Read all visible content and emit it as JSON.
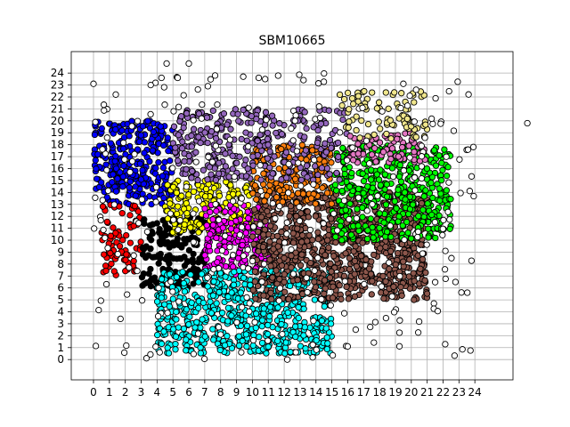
{
  "chart_data": {
    "type": "scatter",
    "title": "SBM10665",
    "xlabel": "",
    "ylabel": "",
    "xlim": [
      -1.4,
      26.4
    ],
    "ylim": [
      -1.7,
      25.8
    ],
    "grid": true,
    "x_ticks": [
      0,
      1,
      2,
      3,
      4,
      5,
      6,
      7,
      8,
      9,
      10,
      11,
      12,
      13,
      14,
      15,
      16,
      17,
      18,
      19,
      20,
      21,
      22,
      23,
      24
    ],
    "y_ticks": [
      0,
      1,
      2,
      3,
      4,
      5,
      6,
      7,
      8,
      9,
      10,
      11,
      12,
      13,
      14,
      15,
      16,
      17,
      18,
      19,
      20,
      21,
      22,
      23,
      24
    ],
    "clusters": [
      {
        "color": "#0000ff",
        "x_range": [
          0,
          5
        ],
        "y_range": [
          13,
          20
        ],
        "density": 16
      },
      {
        "color": "#ff0000",
        "x_range": [
          0.5,
          3
        ],
        "y_range": [
          7,
          13
        ],
        "density": 10
      },
      {
        "color": "#000000",
        "x_range": [
          3,
          7
        ],
        "y_range": [
          6,
          12
        ],
        "density": 14
      },
      {
        "color": "#ffff00",
        "x_range": [
          4.5,
          10
        ],
        "y_range": [
          10.5,
          15
        ],
        "density": 14
      },
      {
        "color": "#ff00ff",
        "x_range": [
          7,
          11
        ],
        "y_range": [
          7,
          13
        ],
        "density": 14
      },
      {
        "color": "#00ffff",
        "x_range": [
          4,
          15
        ],
        "y_range": [
          0.5,
          7.5
        ],
        "density": 16
      },
      {
        "color": "#8c564b",
        "x_range": [
          10,
          21
        ],
        "y_range": [
          5,
          14
        ],
        "density": 18
      },
      {
        "color": "#ff7f0e",
        "x_range": [
          10,
          15
        ],
        "y_range": [
          13,
          18
        ],
        "density": 14
      },
      {
        "color": "#00ff00",
        "x_range": [
          15,
          22.5
        ],
        "y_range": [
          10,
          18
        ],
        "density": 14
      },
      {
        "color": "#9467bd",
        "x_range": [
          5,
          16
        ],
        "y_range": [
          15,
          21
        ],
        "density": 10
      },
      {
        "color": "#e377c2",
        "x_range": [
          16,
          21
        ],
        "y_range": [
          16.5,
          19
        ],
        "density": 12
      },
      {
        "color": "#f0e68c",
        "x_range": [
          15.5,
          21
        ],
        "y_range": [
          18.5,
          22.5
        ],
        "density": 8
      },
      {
        "color": "#ffffff",
        "x_range": [
          0,
          24
        ],
        "y_range": [
          0,
          24
        ],
        "density": 1
      }
    ],
    "outliers": [
      [
        4.6,
        24.8
      ],
      [
        6.0,
        24.8
      ],
      [
        1.4,
        22.2
      ],
      [
        10.4,
        23.6
      ],
      [
        19.5,
        23.1
      ],
      [
        27.3,
        19.8
      ],
      [
        5.3,
        23.6
      ],
      [
        7.2,
        22.9
      ],
      [
        20.3,
        22.6
      ],
      [
        3.6,
        23.0
      ],
      [
        10.8,
        23.5
      ],
      [
        4.1,
        6.0
      ],
      [
        16.0,
        1.1
      ],
      [
        16.5,
        2.5
      ],
      [
        9.3,
        0.6
      ],
      [
        12.2,
        0.0
      ],
      [
        14.2,
        21.2
      ],
      [
        8.0,
        2.1
      ]
    ]
  }
}
